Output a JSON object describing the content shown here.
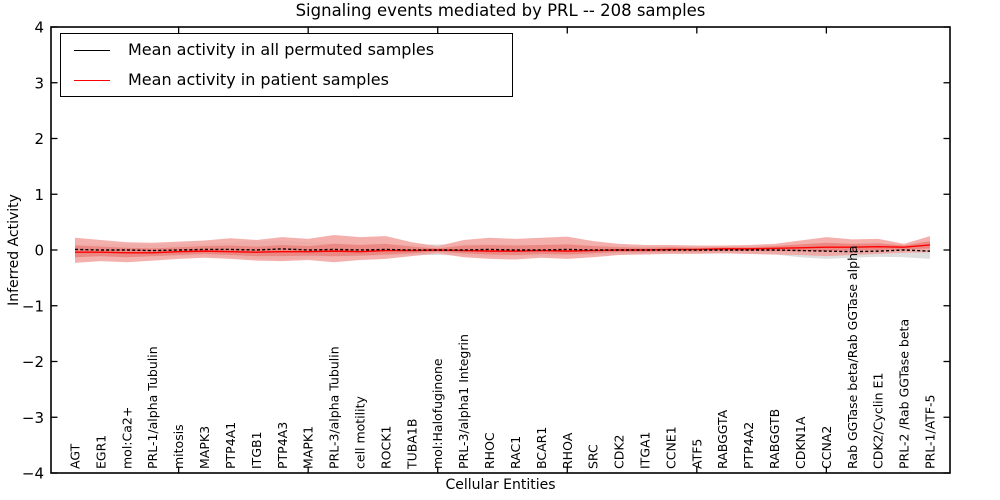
{
  "figure": {
    "background": "#ffffff",
    "frame_color": "#000000"
  },
  "chart_data": {
    "type": "line",
    "title": "Signaling events mediated by PRL -- 208 samples",
    "xlabel": "Cellular Entities",
    "ylabel": "Inferred Activity",
    "ylim": [
      -4,
      4
    ],
    "yticks": [
      -4,
      -3,
      -2,
      -1,
      0,
      1,
      2,
      3,
      4
    ],
    "ytick_labels": [
      "−4",
      "−3",
      "−2",
      "−1",
      "0",
      "1",
      "2",
      "3",
      "4"
    ],
    "xtick_major_positions": [
      5,
      10,
      15,
      20,
      25,
      30
    ],
    "grid": false,
    "legend_position": "upper left",
    "categories": [
      "AGT",
      "EGR1",
      "mol:Ca2+",
      "PRL-1/alpha Tubulin",
      "mitosis",
      "MAPK3",
      "PTP4A1",
      "ITGB1",
      "PTP4A3",
      "MAPK1",
      "PRL-3/alpha Tubulin",
      "cell motility",
      "ROCK1",
      "TUBA1B",
      "mol:Halofuginone",
      "PRL-3/alpha1 Integrin",
      "RHOC",
      "RAC1",
      "BCAR1",
      "RHOA",
      "SRC",
      "CDK2",
      "ITGA1",
      "CCNE1",
      "ATF5",
      "RABGGTA",
      "PTP4A2",
      "RABGGTB",
      "CDKN1A",
      "CCNA2",
      "Rab GGTase beta/Rab GGTase alpha",
      "CDK2/Cyclin E1",
      "PRL-2 /Rab GGTase beta",
      "PRL-1/ATF-5"
    ],
    "legend": [
      {
        "label": "Mean activity in all permuted samples"
      },
      {
        "label": "Mean activity in patient samples"
      }
    ],
    "series": [
      {
        "name": "Mean activity in all permuted samples",
        "color": "#000000",
        "style": "dashed",
        "values": [
          0.01,
          0.0,
          0.0,
          -0.01,
          0.0,
          0.01,
          0.01,
          0.0,
          0.02,
          0.0,
          0.01,
          0.0,
          0.01,
          0.0,
          0.0,
          0.0,
          0.01,
          0.0,
          0.0,
          0.01,
          0.0,
          0.0,
          0.0,
          0.0,
          0.0,
          0.0,
          0.0,
          0.0,
          -0.01,
          -0.02,
          -0.03,
          -0.02,
          0.0,
          -0.02
        ]
      },
      {
        "name": "Mean activity in patient samples",
        "color": "#ff0000",
        "style": "solid",
        "values": [
          -0.04,
          -0.04,
          -0.05,
          -0.05,
          -0.03,
          -0.02,
          -0.03,
          -0.04,
          -0.03,
          -0.03,
          -0.02,
          -0.03,
          -0.01,
          -0.01,
          0.0,
          -0.01,
          -0.02,
          -0.02,
          -0.01,
          -0.02,
          -0.01,
          0.0,
          0.0,
          0.01,
          0.01,
          0.02,
          0.02,
          0.03,
          0.04,
          0.05,
          0.05,
          0.06,
          0.05,
          0.09
        ]
      }
    ],
    "bands": [
      {
        "name": "permuted-samples-range",
        "color": "#dadada",
        "opacity": 0.9,
        "upper": [
          0.1,
          0.1,
          0.11,
          0.1,
          0.1,
          0.11,
          0.13,
          0.16,
          0.17,
          0.14,
          0.12,
          0.1,
          0.1,
          0.09,
          0.1,
          0.1,
          0.11,
          0.1,
          0.09,
          0.1,
          0.09,
          0.08,
          0.07,
          0.07,
          0.06,
          0.06,
          0.07,
          0.08,
          0.1,
          0.11,
          0.1,
          0.08,
          0.09,
          0.08
        ],
        "lower": [
          -0.12,
          -0.12,
          -0.13,
          -0.12,
          -0.11,
          -0.11,
          -0.13,
          -0.16,
          -0.17,
          -0.15,
          -0.13,
          -0.11,
          -0.1,
          -0.09,
          -0.09,
          -0.1,
          -0.13,
          -0.11,
          -0.11,
          -0.1,
          -0.09,
          -0.08,
          -0.07,
          -0.07,
          -0.06,
          -0.06,
          -0.07,
          -0.08,
          -0.13,
          -0.16,
          -0.14,
          -0.12,
          -0.13,
          -0.16
        ]
      },
      {
        "name": "patient-samples-range-outer",
        "color": "#f2a29e",
        "opacity": 0.85,
        "upper": [
          0.22,
          0.18,
          0.14,
          0.13,
          0.15,
          0.17,
          0.21,
          0.18,
          0.23,
          0.2,
          0.27,
          0.23,
          0.25,
          0.14,
          0.07,
          0.18,
          0.22,
          0.2,
          0.22,
          0.24,
          0.16,
          0.11,
          0.09,
          0.09,
          0.08,
          0.08,
          0.09,
          0.11,
          0.17,
          0.23,
          0.19,
          0.2,
          0.11,
          0.25
        ],
        "lower": [
          -0.23,
          -0.2,
          -0.22,
          -0.19,
          -0.16,
          -0.14,
          -0.16,
          -0.19,
          -0.2,
          -0.18,
          -0.22,
          -0.18,
          -0.16,
          -0.11,
          -0.06,
          -0.13,
          -0.16,
          -0.17,
          -0.14,
          -0.16,
          -0.13,
          -0.09,
          -0.08,
          -0.07,
          -0.07,
          -0.06,
          -0.07,
          -0.08,
          -0.09,
          -0.11,
          -0.09,
          -0.07,
          -0.05,
          -0.04
        ]
      },
      {
        "name": "patient-samples-range-inner",
        "color": "#ea817d",
        "opacity": 0.85,
        "upper": [
          0.08,
          0.06,
          0.04,
          0.03,
          0.05,
          0.07,
          0.08,
          0.06,
          0.09,
          0.07,
          0.11,
          0.09,
          0.11,
          0.06,
          0.03,
          0.08,
          0.09,
          0.08,
          0.09,
          0.1,
          0.07,
          0.05,
          0.04,
          0.05,
          0.04,
          0.05,
          0.05,
          0.07,
          0.1,
          0.13,
          0.11,
          0.12,
          0.08,
          0.16
        ],
        "lower": [
          -0.13,
          -0.11,
          -0.13,
          -0.11,
          -0.09,
          -0.07,
          -0.09,
          -0.11,
          -0.11,
          -0.1,
          -0.11,
          -0.1,
          -0.08,
          -0.06,
          -0.03,
          -0.06,
          -0.08,
          -0.09,
          -0.07,
          -0.08,
          -0.06,
          -0.04,
          -0.04,
          -0.03,
          -0.03,
          -0.02,
          -0.02,
          -0.02,
          -0.02,
          -0.02,
          -0.01,
          0.0,
          0.01,
          0.03
        ]
      }
    ]
  }
}
